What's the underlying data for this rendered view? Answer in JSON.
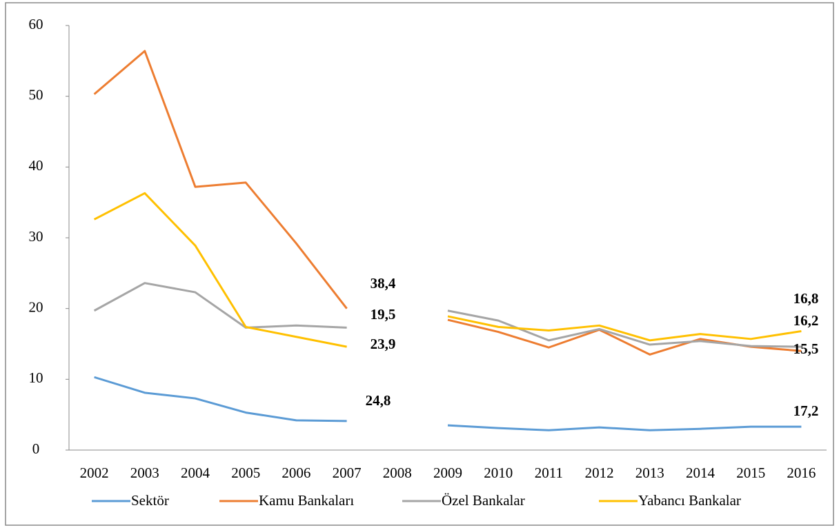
{
  "chart_data": {
    "type": "line",
    "categories": [
      "2002",
      "2003",
      "2004",
      "2005",
      "2006",
      "2007",
      "2008",
      "2009",
      "2010",
      "2011",
      "2012",
      "2013",
      "2014",
      "2015",
      "2016"
    ],
    "series": [
      {
        "name": "Sektör",
        "color": "#5b9bd5",
        "values": [
          10.3,
          8.1,
          7.3,
          5.3,
          4.2,
          4.1,
          null,
          3.5,
          3.1,
          2.8,
          3.2,
          2.8,
          3.0,
          3.3,
          3.3
        ]
      },
      {
        "name": "Kamu Bankaları",
        "color": "#ed7d31",
        "values": [
          50.3,
          56.4,
          37.2,
          37.8,
          29.2,
          20.0,
          null,
          18.4,
          16.7,
          14.5,
          17.0,
          13.5,
          15.7,
          14.6,
          14.0
        ]
      },
      {
        "name": "Özel Bankalar",
        "color": "#a5a5a5",
        "values": [
          19.7,
          23.6,
          22.3,
          17.3,
          17.6,
          17.3,
          null,
          19.7,
          18.3,
          15.5,
          17.1,
          14.9,
          15.4,
          14.7,
          14.6
        ]
      },
      {
        "name": "Yabancı Bankalar",
        "color": "#ffc000",
        "values": [
          32.6,
          36.3,
          28.9,
          17.4,
          16.0,
          14.6,
          null,
          18.9,
          17.4,
          16.9,
          17.6,
          15.5,
          16.4,
          15.7,
          16.8
        ]
      }
    ],
    "annotations": [
      "38,4",
      "19,5",
      "23,9",
      "24,8",
      "16,8",
      "16,2",
      "15,5",
      "17,2"
    ],
    "ylim": [
      0,
      60
    ],
    "yticks": [
      0,
      10,
      20,
      30,
      40,
      50,
      60
    ],
    "grid": false,
    "legend": "bottom"
  }
}
